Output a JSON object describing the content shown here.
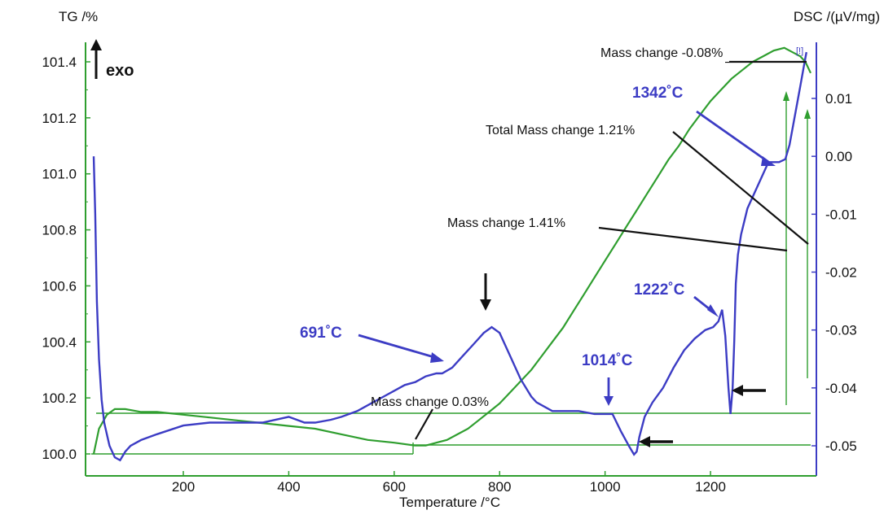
{
  "colors": {
    "tg": "#2f9e2f",
    "dsc": "#3c3cc4",
    "annotation": "#111111",
    "axis_left": "#2f9e2f",
    "axis_right": "#3c3cc4"
  },
  "chart_data": {
    "type": "line",
    "title": "",
    "xlabel": "Temperature /°C",
    "ylabel_left": "TG /%",
    "ylabel_right": "DSC /(µV/mg)",
    "exo_label": "exo",
    "xlim": [
      20,
      1400
    ],
    "ylim_left": [
      99.96,
      101.5
    ],
    "ylim_right": [
      -0.0535,
      0.0194
    ],
    "x_ticks": [
      200,
      400,
      600,
      800,
      1000,
      1200
    ],
    "y_left_ticks": [
      "100.0",
      "100.2",
      "100.4",
      "100.6",
      "100.8",
      "101.0",
      "101.2",
      "101.4"
    ],
    "y_right_ticks": [
      "0.01",
      "0.00",
      "-0.01",
      "-0.02",
      "-0.03",
      "-0.04",
      "-0.05"
    ],
    "grid": false,
    "series": [
      {
        "axis": "left",
        "x": [
          30,
          40,
          55,
          70,
          90,
          120,
          150,
          200,
          250,
          300,
          350,
          400,
          450,
          500,
          550,
          600,
          640,
          660,
          680,
          700,
          720,
          740,
          760,
          780,
          800,
          820,
          840,
          860,
          880,
          900,
          920,
          940,
          960,
          980,
          1000,
          1020,
          1040,
          1060,
          1080,
          1100,
          1120,
          1140,
          1160,
          1180,
          1200,
          1220,
          1240,
          1260,
          1280,
          1300,
          1320,
          1340,
          1360,
          1370,
          1380,
          1390
        ],
        "y": [
          100.0,
          100.09,
          100.14,
          100.16,
          100.16,
          100.15,
          100.15,
          100.14,
          100.13,
          100.12,
          100.11,
          100.1,
          100.09,
          100.07,
          100.05,
          100.04,
          100.03,
          100.03,
          100.04,
          100.05,
          100.07,
          100.09,
          100.12,
          100.15,
          100.18,
          100.22,
          100.26,
          100.3,
          100.35,
          100.4,
          100.45,
          100.51,
          100.57,
          100.63,
          100.69,
          100.75,
          100.81,
          100.87,
          100.93,
          100.99,
          101.05,
          101.1,
          101.16,
          101.21,
          101.26,
          101.3,
          101.34,
          101.37,
          101.4,
          101.42,
          101.44,
          101.45,
          101.43,
          101.42,
          101.4,
          101.36
        ]
      },
      {
        "axis": "right",
        "x": [
          30,
          33,
          36,
          40,
          45,
          50,
          60,
          70,
          80,
          90,
          100,
          120,
          150,
          200,
          250,
          300,
          350,
          400,
          430,
          450,
          480,
          500,
          530,
          560,
          580,
          600,
          620,
          640,
          660,
          680,
          691,
          710,
          730,
          750,
          770,
          785,
          800,
          820,
          840,
          860,
          870,
          900,
          950,
          980,
          1000,
          1014,
          1030,
          1045,
          1055,
          1060,
          1065,
          1075,
          1090,
          1110,
          1130,
          1150,
          1170,
          1190,
          1205,
          1215,
          1222,
          1228,
          1234,
          1238,
          1242,
          1245,
          1248,
          1252,
          1258,
          1270,
          1290,
          1310,
          1330,
          1342,
          1350,
          1360,
          1370,
          1378,
          1382
        ],
        "y": [
          0.0,
          -0.01,
          -0.025,
          -0.035,
          -0.042,
          -0.046,
          -0.05,
          -0.052,
          -0.0525,
          -0.051,
          -0.05,
          -0.049,
          -0.048,
          -0.0465,
          -0.046,
          -0.046,
          -0.046,
          -0.045,
          -0.046,
          -0.046,
          -0.0455,
          -0.045,
          -0.044,
          -0.0425,
          -0.0415,
          -0.0405,
          -0.0395,
          -0.039,
          -0.038,
          -0.0375,
          -0.0375,
          -0.0365,
          -0.0345,
          -0.0325,
          -0.0305,
          -0.0295,
          -0.0305,
          -0.0345,
          -0.0385,
          -0.0415,
          -0.0425,
          -0.044,
          -0.044,
          -0.0445,
          -0.0445,
          -0.0445,
          -0.0475,
          -0.05,
          -0.0515,
          -0.051,
          -0.0485,
          -0.045,
          -0.0425,
          -0.04,
          -0.0365,
          -0.0335,
          -0.0315,
          -0.03,
          -0.0295,
          -0.0285,
          -0.0265,
          -0.031,
          -0.04,
          -0.0445,
          -0.04,
          -0.032,
          -0.022,
          -0.017,
          -0.0135,
          -0.009,
          -0.005,
          -0.001,
          -0.001,
          -0.0005,
          0.002,
          0.007,
          0.012,
          0.016,
          0.018
        ]
      }
    ],
    "annotations": {
      "mass_change_1": "Mass change -0.08%",
      "total_mass_change": "Total Mass change 1.21%",
      "mass_change_2": "Mass change 1.41%",
      "mass_change_3": "Mass change 0.03%",
      "peak_1342": "1342˚C",
      "peak_691": "691˚C",
      "peak_1222": "1222˚C",
      "peak_1014": "1014˚C",
      "bracket_marker": "[!]"
    }
  }
}
